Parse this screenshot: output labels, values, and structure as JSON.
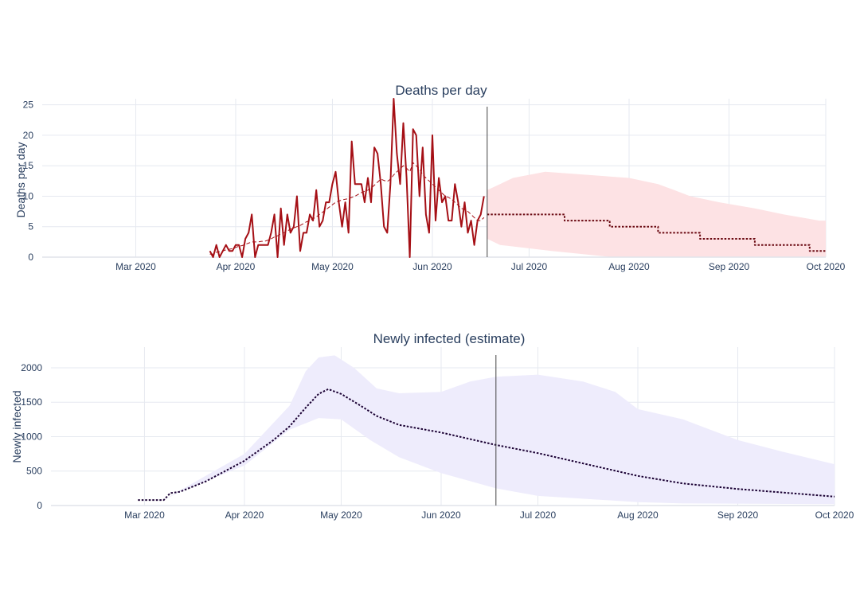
{
  "chart_data": [
    {
      "type": "line",
      "title": "Deaths per day",
      "ylabel": "Deaths per day",
      "xlabel": "",
      "ylim": [
        0,
        26
      ],
      "yticks": [
        0,
        5,
        10,
        15,
        20,
        25
      ],
      "xlim": [
        "2020-02-01",
        "2020-10-01"
      ],
      "xticks": [
        {
          "date": "2020-03-01",
          "label": "Mar 2020"
        },
        {
          "date": "2020-04-01",
          "label": "Apr 2020"
        },
        {
          "date": "2020-05-01",
          "label": "May 2020"
        },
        {
          "date": "2020-06-01",
          "label": "Jun 2020"
        },
        {
          "date": "2020-07-01",
          "label": "Jul 2020"
        },
        {
          "date": "2020-08-01",
          "label": "Aug 2020"
        },
        {
          "date": "2020-09-01",
          "label": "Sep 2020"
        },
        {
          "date": "2020-10-01",
          "label": "Oct 2020"
        }
      ],
      "grid": true,
      "vline_date": "2020-06-18",
      "colors": {
        "observed": "#a50f15",
        "band": "#fde2e4",
        "axis": "#2a3f5f"
      },
      "series": [
        {
          "style": "solid",
          "start": "2020-03-24",
          "values": [
            1,
            0,
            2,
            0,
            1,
            2,
            1,
            1,
            2,
            2,
            0,
            3,
            4,
            7,
            0,
            2,
            2,
            2,
            2,
            4,
            7,
            0,
            8,
            2,
            7,
            4,
            5,
            10,
            1,
            4,
            4,
            7,
            6,
            11,
            5,
            6,
            9,
            9,
            12,
            14,
            9,
            5,
            9,
            4,
            19,
            12,
            12,
            12,
            9,
            13,
            9,
            18,
            17,
            12,
            5,
            4,
            12,
            26,
            17,
            12,
            22,
            13,
            0,
            21,
            20,
            10,
            18,
            7,
            4,
            20,
            6,
            13,
            9,
            10,
            6,
            6,
            12,
            9,
            5,
            9,
            4,
            6,
            2,
            6,
            7,
            10
          ]
        },
        {
          "style": "dashed",
          "start": "2020-03-24",
          "values": [
            0.5,
            0.5,
            0.8,
            0.9,
            1.0,
            1.2,
            1.3,
            1.4,
            1.6,
            1.8,
            1.9,
            2.1,
            2.3,
            2.5,
            2.5,
            2.5,
            2.6,
            2.6,
            2.8,
            3.0,
            3.3,
            3.5,
            3.8,
            4.0,
            4.3,
            4.6,
            4.8,
            5.0,
            5.2,
            5.5,
            5.8,
            6.0,
            6.3,
            6.6,
            7.0,
            7.4,
            7.8,
            8.2,
            8.6,
            9.0,
            9.2,
            9.4,
            9.5,
            9.6,
            9.8,
            10.0,
            10.3,
            10.6,
            10.8,
            11.0,
            11.3,
            11.8,
            12.3,
            12.8,
            12.6,
            12.4,
            12.8,
            13.5,
            14.0,
            14.5,
            15.0,
            14.6,
            14.0,
            15.5,
            15.0,
            14.5,
            13.5,
            13.0,
            12.5,
            12.0,
            11.5,
            11.0,
            10.5,
            10.0,
            9.8,
            9.5,
            9.0,
            8.5,
            8.0,
            7.8,
            7.5,
            7.0,
            6.5,
            6.0,
            6.0,
            6.5
          ]
        },
        {
          "style": "dotted",
          "steps": [
            [
              "2020-06-18",
              7
            ],
            [
              "2020-07-12",
              6
            ],
            [
              "2020-07-26",
              5
            ],
            [
              "2020-08-10",
              4
            ],
            [
              "2020-08-23",
              3
            ],
            [
              "2020-09-09",
              2
            ],
            [
              "2020-09-26",
              1
            ],
            [
              "2020-10-01",
              1
            ]
          ]
        }
      ],
      "band": {
        "upper": [
          [
            "2020-06-18",
            11
          ],
          [
            "2020-06-22",
            12
          ],
          [
            "2020-06-26",
            13
          ],
          [
            "2020-07-06",
            14
          ],
          [
            "2020-08-01",
            13
          ],
          [
            "2020-08-10",
            12
          ],
          [
            "2020-08-15",
            11
          ],
          [
            "2020-08-20",
            10
          ],
          [
            "2020-08-29",
            9
          ],
          [
            "2020-09-09",
            8
          ],
          [
            "2020-09-18",
            7
          ],
          [
            "2020-09-29",
            6
          ],
          [
            "2020-10-01",
            6
          ]
        ],
        "lower": [
          [
            "2020-06-18",
            3
          ],
          [
            "2020-06-22",
            2
          ],
          [
            "2020-07-08",
            1
          ],
          [
            "2020-07-27",
            0
          ],
          [
            "2020-10-01",
            0
          ]
        ]
      }
    },
    {
      "type": "line",
      "title": "Newly infected (estimate)",
      "ylabel": "Newly infected",
      "xlabel": "",
      "ylim": [
        0,
        2300
      ],
      "yticks": [
        0,
        500,
        1000,
        1500,
        2000
      ],
      "xlim": [
        "2020-02-01",
        "2020-10-01"
      ],
      "xticks": [
        {
          "date": "2020-03-01",
          "label": "Mar 2020"
        },
        {
          "date": "2020-04-01",
          "label": "Apr 2020"
        },
        {
          "date": "2020-05-01",
          "label": "May 2020"
        },
        {
          "date": "2020-06-01",
          "label": "Jun 2020"
        },
        {
          "date": "2020-07-01",
          "label": "Jul 2020"
        },
        {
          "date": "2020-08-01",
          "label": "Aug 2020"
        },
        {
          "date": "2020-09-01",
          "label": "Sep 2020"
        },
        {
          "date": "2020-10-01",
          "label": "Oct 2020"
        }
      ],
      "grid": true,
      "vline_date": "2020-06-18",
      "colors": {
        "line": "#1a0033",
        "band": "#eeecfc",
        "axis": "#2a3f5f"
      },
      "series": [
        {
          "style": "dotted",
          "points": [
            [
              "2020-02-28",
              80
            ],
            [
              "2020-03-07",
              80
            ],
            [
              "2020-03-09",
              180
            ],
            [
              "2020-03-12",
              200
            ],
            [
              "2020-03-20",
              350
            ],
            [
              "2020-04-01",
              650
            ],
            [
              "2020-04-10",
              950
            ],
            [
              "2020-04-15",
              1150
            ],
            [
              "2020-04-20",
              1420
            ],
            [
              "2020-04-24",
              1620
            ],
            [
              "2020-04-27",
              1690
            ],
            [
              "2020-05-01",
              1620
            ],
            [
              "2020-05-07",
              1450
            ],
            [
              "2020-05-12",
              1300
            ],
            [
              "2020-05-19",
              1170
            ],
            [
              "2020-06-01",
              1060
            ],
            [
              "2020-06-18",
              880
            ],
            [
              "2020-07-01",
              760
            ],
            [
              "2020-08-01",
              430
            ],
            [
              "2020-08-15",
              320
            ],
            [
              "2020-09-01",
              240
            ],
            [
              "2020-10-01",
              130
            ]
          ]
        }
      ],
      "band": {
        "upper": [
          [
            "2020-02-28",
            80
          ],
          [
            "2020-03-07",
            80
          ],
          [
            "2020-03-12",
            220
          ],
          [
            "2020-04-01",
            750
          ],
          [
            "2020-04-15",
            1450
          ],
          [
            "2020-04-20",
            1950
          ],
          [
            "2020-04-24",
            2150
          ],
          [
            "2020-04-29",
            2180
          ],
          [
            "2020-05-05",
            2000
          ],
          [
            "2020-05-12",
            1700
          ],
          [
            "2020-05-19",
            1630
          ],
          [
            "2020-06-01",
            1650
          ],
          [
            "2020-06-10",
            1800
          ],
          [
            "2020-06-18",
            1870
          ],
          [
            "2020-07-01",
            1900
          ],
          [
            "2020-07-15",
            1800
          ],
          [
            "2020-07-25",
            1650
          ],
          [
            "2020-08-01",
            1400
          ],
          [
            "2020-08-15",
            1250
          ],
          [
            "2020-09-01",
            950
          ],
          [
            "2020-09-15",
            780
          ],
          [
            "2020-10-01",
            600
          ]
        ],
        "lower": [
          [
            "2020-02-28",
            80
          ],
          [
            "2020-03-07",
            80
          ],
          [
            "2020-03-12",
            200
          ],
          [
            "2020-04-01",
            580
          ],
          [
            "2020-04-15",
            1100
          ],
          [
            "2020-04-24",
            1270
          ],
          [
            "2020-05-01",
            1250
          ],
          [
            "2020-05-10",
            950
          ],
          [
            "2020-05-19",
            700
          ],
          [
            "2020-06-01",
            470
          ],
          [
            "2020-06-18",
            250
          ],
          [
            "2020-07-01",
            140
          ],
          [
            "2020-08-01",
            50
          ],
          [
            "2020-08-15",
            30
          ],
          [
            "2020-10-01",
            20
          ]
        ]
      }
    }
  ]
}
